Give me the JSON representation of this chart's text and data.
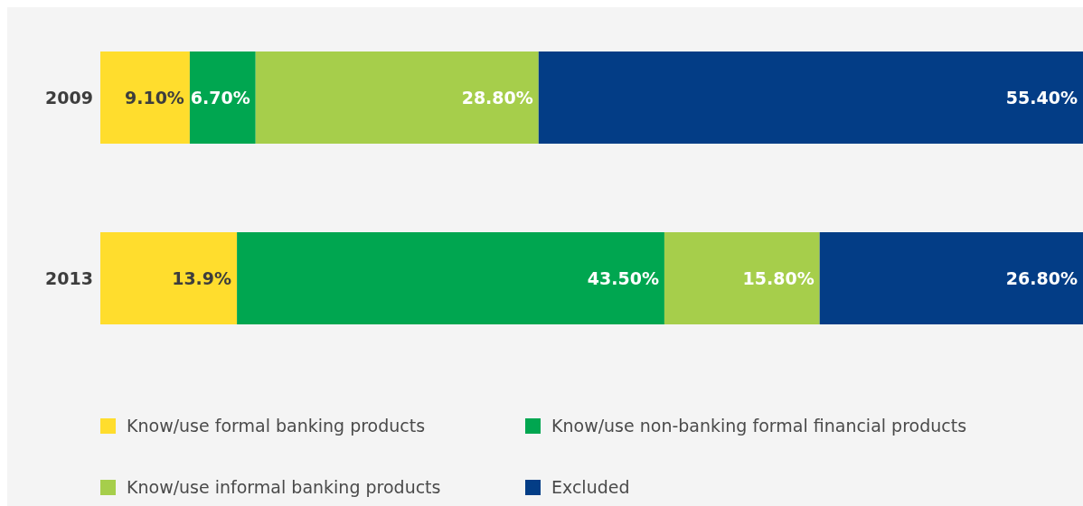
{
  "chart_data": {
    "type": "bar",
    "orientation": "horizontal",
    "stacked": true,
    "categories": [
      "2009",
      "2013"
    ],
    "xlim": [
      0,
      100
    ],
    "tick_labels": "y",
    "legend": "bottom",
    "series": [
      {
        "name": "Know/use formal banking products",
        "color": "#ffdd2d",
        "values": [
          9.1,
          13.9
        ],
        "value_labels": [
          "9.10%",
          "13.9%"
        ]
      },
      {
        "name": "Know/use non-banking formal financial products",
        "color": "#00a650",
        "values": [
          6.7,
          43.5
        ],
        "value_labels": [
          "6.70%",
          "43.50%"
        ]
      },
      {
        "name": "Know/use informal banking products",
        "color": "#a6ce4b",
        "values": [
          28.8,
          15.8
        ],
        "value_labels": [
          "28.80%",
          "15.80%"
        ]
      },
      {
        "name": "Excluded",
        "color": "#033d86",
        "values": [
          55.4,
          26.8
        ],
        "value_labels": [
          "55.40%",
          "26.80%"
        ]
      }
    ]
  }
}
